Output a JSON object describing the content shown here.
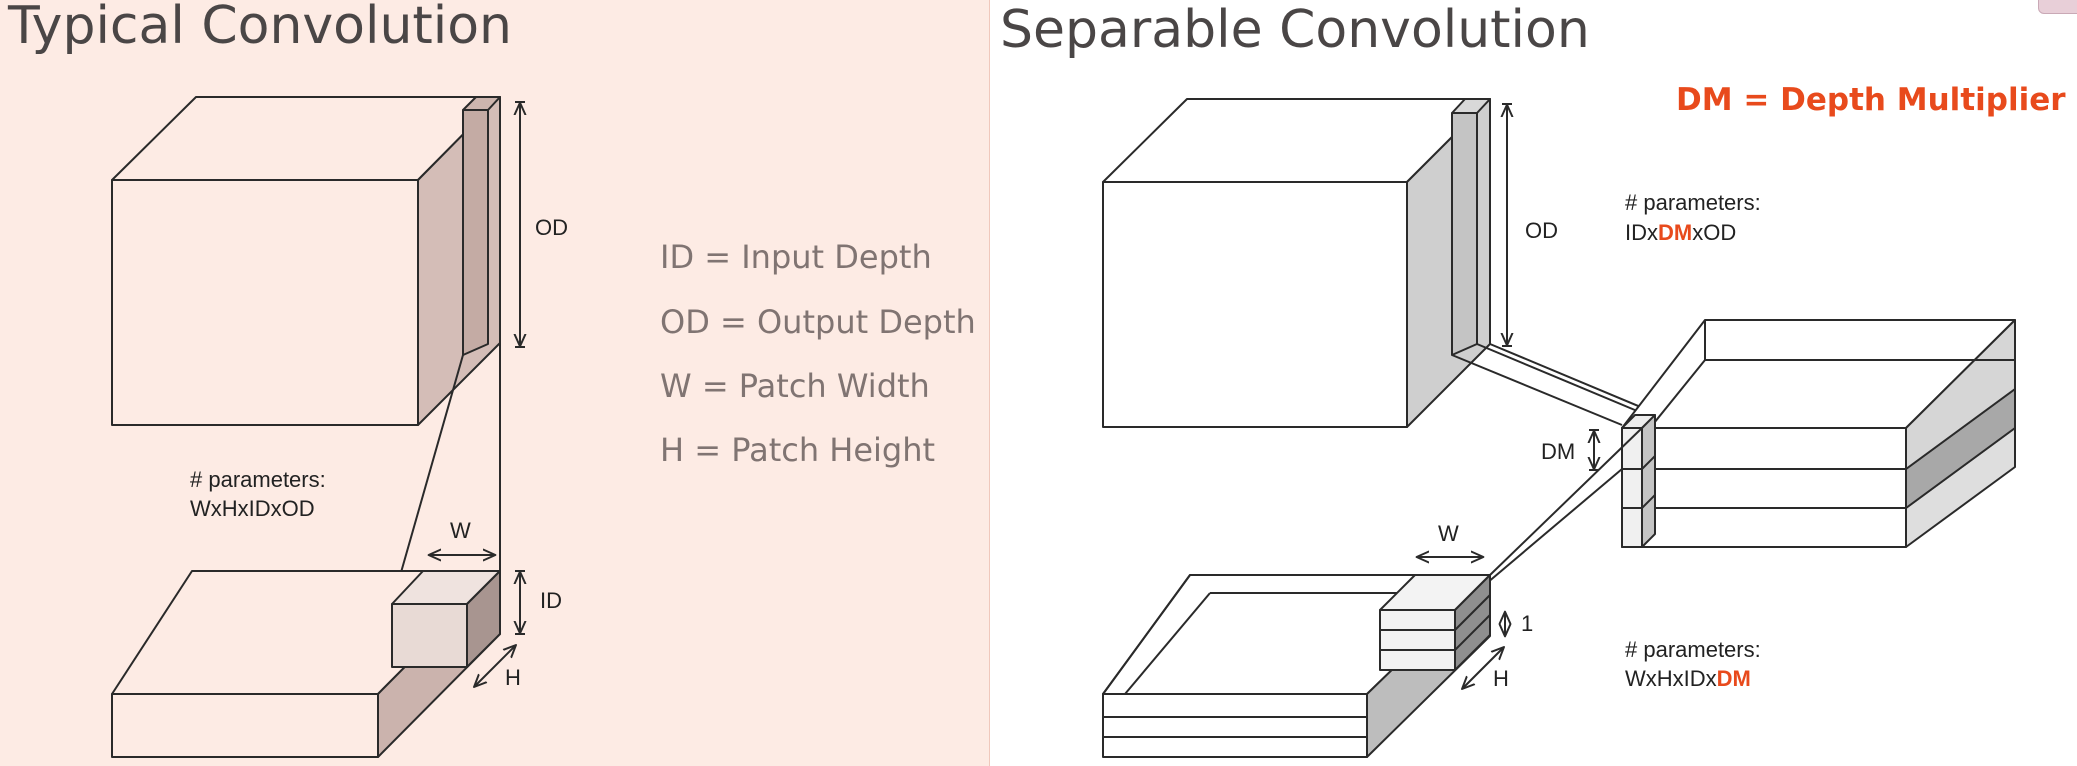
{
  "left_panel": {
    "title": "Typical Convolution",
    "legend": [
      "ID = Input Depth",
      "OD = Output Depth",
      "W = Patch Width",
      "H = Patch Height"
    ],
    "labels": {
      "od": "OD",
      "w": "W",
      "id": "ID",
      "h": "H"
    },
    "params_label": "# parameters:",
    "params_formula": "WxHxIDxOD"
  },
  "right_panel": {
    "title": "Separable Convolution",
    "dm_definition": "DM = Depth Multiplier",
    "labels": {
      "od": "OD",
      "dm": "DM",
      "w": "W",
      "one": "1",
      "h": "H"
    },
    "params_top_label": "# parameters:",
    "params_top": {
      "pre": "IDx",
      "dm": "DM",
      "post": "xOD"
    },
    "params_bottom_label": "# parameters:",
    "params_bottom": {
      "pre": "WxHxIDx",
      "dm": "DM"
    }
  },
  "colors": {
    "accent": "#e84a1c",
    "left_background": "#fdebe4"
  }
}
